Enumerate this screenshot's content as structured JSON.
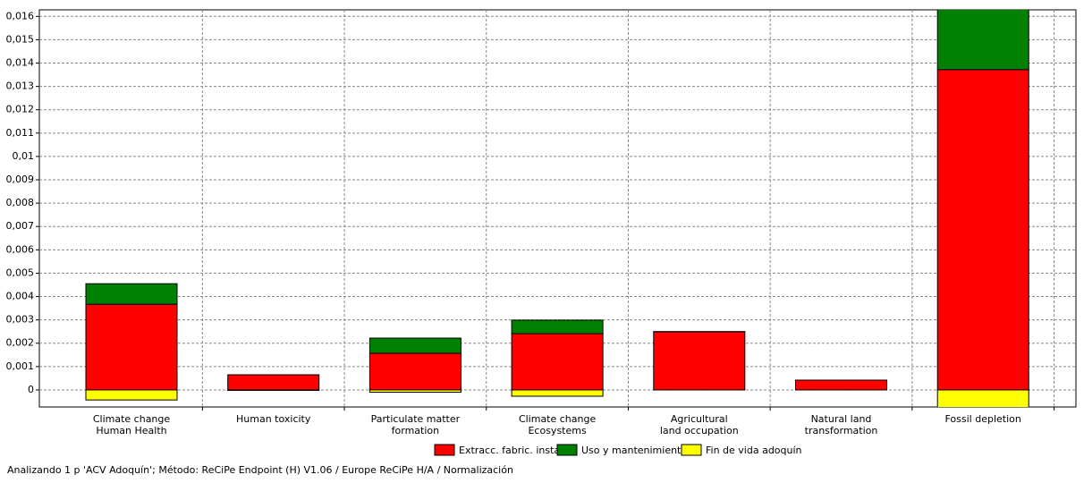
{
  "chart_data": {
    "type": "stacked-bar",
    "categories": [
      [
        "Climate change",
        "Human Health"
      ],
      [
        "Human toxicity"
      ],
      [
        "Particulate matter",
        "formation"
      ],
      [
        "Climate change",
        "Ecosystems"
      ],
      [
        "Agricultural",
        "land occupation"
      ],
      [
        "Natural land",
        "transformation"
      ],
      [
        "Fossil depletion"
      ]
    ],
    "series": [
      {
        "name": "Extracc. fabric. instal.",
        "color": "#ff0000",
        "values": [
          0.00367,
          0.00065,
          0.00157,
          0.00241,
          0.00249,
          0.00042,
          0.01372
        ]
      },
      {
        "name": "Uso y mantenimiento",
        "color": "#008000",
        "values": [
          0.00088,
          0,
          0.00065,
          0.00058,
          1e-05,
          0,
          0.0026
        ]
      },
      {
        "name": "Fin de vida adoquín",
        "color": "#ffff00",
        "values": [
          -0.00043,
          -2e-05,
          -0.0001,
          -0.00027,
          0,
          0,
          -0.0008
        ]
      }
    ],
    "ylim": [
      -0.00073,
      0.01628
    ],
    "yticks": [
      0,
      {
        "value": 0.001,
        "label": "0,001"
      },
      {
        "value": 0.002,
        "label": "0,002"
      },
      {
        "value": 0.003,
        "label": "0,003"
      },
      {
        "value": 0.004,
        "label": "0,004"
      },
      {
        "value": 0.005,
        "label": "0,005"
      },
      {
        "value": 0.006,
        "label": "0,006"
      },
      {
        "value": 0.007,
        "label": "0,007"
      },
      {
        "value": 0.008,
        "label": "0,008"
      },
      {
        "value": 0.009,
        "label": "0,009"
      },
      {
        "value": 0.01,
        "label": "0,01"
      },
      {
        "value": 0.011,
        "label": "0,011"
      },
      {
        "value": 0.012,
        "label": "0,012"
      },
      {
        "value": 0.013,
        "label": "0,013"
      },
      {
        "value": 0.014,
        "label": "0,014"
      },
      {
        "value": 0.015,
        "label": "0,015"
      },
      {
        "value": 0.016,
        "label": "0,016"
      }
    ],
    "grid": true,
    "legend": "bottom",
    "footer": "Analizando 1 p 'ACV Adoquín';  Método: ReCiPe Endpoint (H) V1.06 / Europe ReCiPe H/A / Normalización"
  }
}
